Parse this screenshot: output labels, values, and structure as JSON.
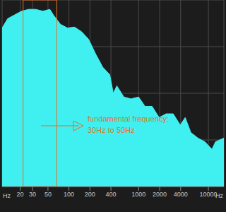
{
  "chart_data": {
    "type": "area",
    "x_label": "Hz",
    "x": [
      11,
      13.2,
      16.6,
      20.9,
      26.4,
      33.3,
      42.2,
      53.2,
      59.7,
      75.4,
      95,
      120,
      152,
      191,
      242,
      305,
      385,
      432,
      486,
      613,
      773,
      998,
      1233,
      1556,
      1964,
      2477,
      3126,
      3945,
      4645,
      5598,
      7066,
      8917,
      11250,
      12640,
      16670
    ],
    "values": [
      85,
      90,
      92,
      94,
      95,
      95,
      94,
      95,
      92,
      87,
      85,
      85.5,
      83,
      79,
      71,
      64,
      60,
      50,
      54,
      48,
      47,
      48,
      43,
      43,
      37,
      39,
      39,
      33,
      37,
      29,
      26,
      24,
      20,
      24,
      26
    ],
    "color": "#40f0f0",
    "log": "x",
    "xlim": [
      11,
      16670
    ],
    "xticks": [
      20,
      30,
      50,
      100,
      200,
      400,
      1000,
      2000,
      4000,
      10000
    ],
    "ylim": [
      0,
      100
    ],
    "yticks": [
      0,
      25,
      50,
      75,
      100
    ],
    "grid": true,
    "tick_labels": "x",
    "annotation": {
      "lines": [
        "fundamental frequency:",
        "30Hz to 50Hz"
      ],
      "x_range": [
        22,
        67
      ]
    }
  }
}
